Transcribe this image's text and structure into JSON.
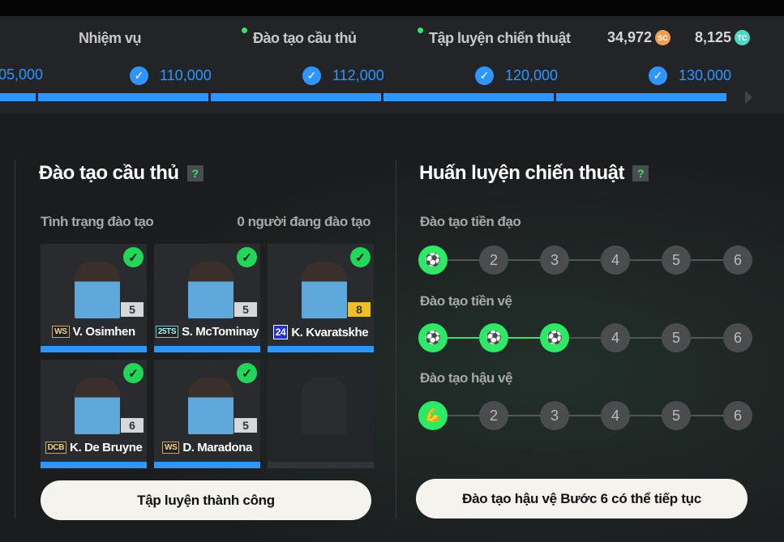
{
  "tabs": [
    {
      "label": "Nhiệm vụ",
      "dot": false
    },
    {
      "label": "Đào tạo cầu thủ",
      "dot": true
    },
    {
      "label": "Tập luyện chiến thuật",
      "dot": true
    }
  ],
  "currency": [
    {
      "value": "34,972",
      "icon": "SC",
      "color": "#f0a050"
    },
    {
      "value": "8,125",
      "icon": "TC",
      "color": "#4fd6c4"
    }
  ],
  "milestones": [
    {
      "value": "05,000",
      "checked": false
    },
    {
      "value": "110,000",
      "checked": true
    },
    {
      "value": "112,000",
      "checked": true
    },
    {
      "value": "120,000",
      "checked": true
    },
    {
      "value": "130,000",
      "checked": true
    }
  ],
  "player_training": {
    "title": "Đào tạo cầu thủ",
    "help": "?",
    "status_label": "Tình trạng đào tạo",
    "status_value": "0 người đang đào tạo",
    "cards": [
      {
        "name": "V. Osimhen",
        "badge": "WS",
        "level": "5"
      },
      {
        "name": "S. McTominay",
        "badge": "25TS",
        "level": "5"
      },
      {
        "name": "K. Kvaratskhe",
        "badge": "24",
        "level": "8"
      },
      {
        "name": "K. De Bruyne",
        "badge": "DCB",
        "level": "6"
      },
      {
        "name": "D. Maradona",
        "badge": "WS",
        "level": "5"
      }
    ],
    "button": "Tập luyện thành công"
  },
  "tactical": {
    "title": "Huấn luyện chiến thuật",
    "help": "?",
    "tracks": [
      {
        "label": "Đào tạo tiền đạo",
        "completed": 1,
        "steps": [
          "1",
          "2",
          "3",
          "4",
          "5",
          "6"
        ]
      },
      {
        "label": "Đào tạo tiền vệ",
        "completed": 3,
        "steps": [
          "1",
          "2",
          "3",
          "4",
          "5",
          "6"
        ]
      },
      {
        "label": "Đào tạo hậu vệ",
        "completed": 1,
        "steps": [
          "1",
          "2",
          "3",
          "4",
          "5",
          "6"
        ]
      }
    ],
    "button": "Đào tạo hậu vệ Bước 6 có thể tiếp tục"
  }
}
